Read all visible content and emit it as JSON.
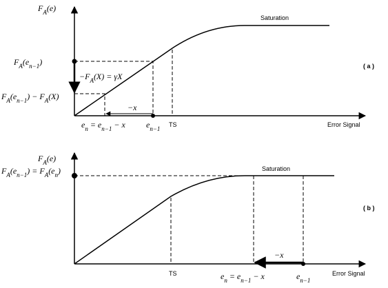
{
  "panels": [
    {
      "labels": [
        {
          "kind": "math",
          "parts": [
            {
              "text": "F"
            },
            {
              "sub": "A"
            },
            {
              "text": "(e)"
            }
          ]
        },
        {
          "kind": "plain",
          "parts": [
            {
              "text": "Saturation"
            }
          ]
        },
        {
          "kind": "math",
          "parts": [
            {
              "text": "F"
            },
            {
              "sub": "A"
            },
            {
              "text": "(e"
            },
            {
              "sub": "n−1"
            },
            {
              "text": ")"
            }
          ]
        },
        {
          "kind": "math",
          "parts": [
            {
              "text": "−F"
            },
            {
              "sub": "A"
            },
            {
              "text": "(X) = γX"
            }
          ]
        },
        {
          "kind": "math",
          "parts": [
            {
              "text": "F"
            },
            {
              "sub": "A"
            },
            {
              "text": "(e"
            },
            {
              "sub": "n−1"
            },
            {
              "text": ") − F"
            },
            {
              "sub": "A"
            },
            {
              "text": "(X)"
            }
          ]
        },
        {
          "kind": "math",
          "parts": [
            {
              "text": "−x"
            }
          ]
        },
        {
          "kind": "math",
          "parts": [
            {
              "text": "e"
            },
            {
              "sub": "n"
            },
            {
              "text": " = e"
            },
            {
              "sub": "n−1"
            },
            {
              "text": " − x"
            }
          ]
        },
        {
          "kind": "math",
          "parts": [
            {
              "text": "e"
            },
            {
              "sub": "n−1"
            }
          ]
        },
        {
          "kind": "plain",
          "parts": [
            {
              "text": "TS"
            }
          ]
        },
        {
          "kind": "plain",
          "parts": [
            {
              "text": "Error Signal"
            }
          ]
        },
        {
          "kind": "plainbold",
          "parts": [
            {
              "text": "( a )"
            }
          ]
        }
      ]
    },
    {
      "labels": [
        {
          "kind": "math",
          "parts": [
            {
              "text": "F"
            },
            {
              "sub": "A"
            },
            {
              "text": "(e)"
            }
          ]
        },
        {
          "kind": "math",
          "parts": [
            {
              "text": "F"
            },
            {
              "sub": "A"
            },
            {
              "text": "(e"
            },
            {
              "sub": "n−1"
            },
            {
              "text": ") = F"
            },
            {
              "sub": "A"
            },
            {
              "text": "(e"
            },
            {
              "sub": "n"
            },
            {
              "text": ")"
            }
          ]
        },
        {
          "kind": "plain",
          "parts": [
            {
              "text": "Saturation"
            }
          ]
        },
        {
          "kind": "plainbold",
          "parts": [
            {
              "text": "( b )"
            }
          ]
        },
        {
          "kind": "plain",
          "parts": [
            {
              "text": "TS"
            }
          ]
        },
        {
          "kind": "math",
          "parts": [
            {
              "text": "−x"
            }
          ]
        },
        {
          "kind": "math",
          "parts": [
            {
              "text": "e"
            },
            {
              "sub": "n"
            },
            {
              "text": " = e"
            },
            {
              "sub": "n−1"
            },
            {
              "text": " − x"
            }
          ]
        },
        {
          "kind": "math",
          "parts": [
            {
              "text": "e"
            },
            {
              "sub": "n−1"
            }
          ]
        },
        {
          "kind": "plain",
          "parts": [
            {
              "text": "Error Signal"
            }
          ]
        }
      ]
    }
  ]
}
